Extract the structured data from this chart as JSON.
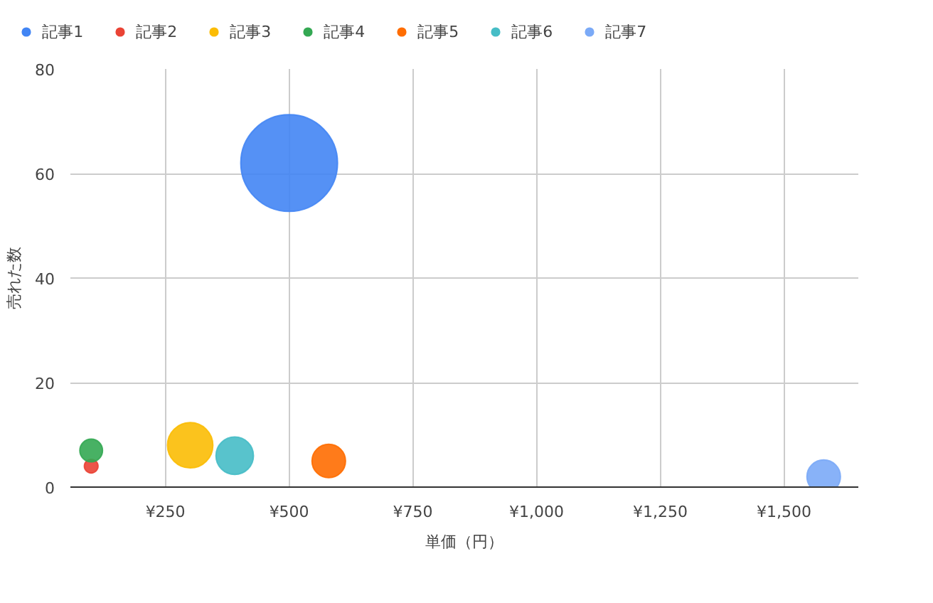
{
  "chart_data": {
    "type": "bubble",
    "xlabel": "単価（円）",
    "ylabel": "売れた数",
    "xlim": [
      58,
      1650
    ],
    "ylim": [
      0,
      80
    ],
    "xticks": [
      {
        "value": 250,
        "label": "¥250"
      },
      {
        "value": 500,
        "label": "¥500"
      },
      {
        "value": 750,
        "label": "¥750"
      },
      {
        "value": 1000,
        "label": "¥1,000"
      },
      {
        "value": 1250,
        "label": "¥1,250"
      },
      {
        "value": 1500,
        "label": "¥1,500"
      }
    ],
    "yticks": [
      0,
      20,
      40,
      60,
      80
    ],
    "grid": true,
    "legend": "top",
    "series": [
      {
        "name": "記事1",
        "color": "#4285f4",
        "x": [
          500
        ],
        "values": [
          62
        ],
        "sizes": [
          1
        ]
      },
      {
        "name": "記事2",
        "color": "#ea4335",
        "x": [
          100
        ],
        "values": [
          4
        ],
        "sizes": [
          0.02
        ]
      },
      {
        "name": "記事3",
        "color": "#fbbc04",
        "x": [
          300
        ],
        "values": [
          8
        ],
        "sizes": [
          0.22
        ]
      },
      {
        "name": "記事4",
        "color": "#34a853",
        "x": [
          100
        ],
        "values": [
          7
        ],
        "sizes": [
          0.055
        ]
      },
      {
        "name": "記事5",
        "color": "#ff6d01",
        "x": [
          580
        ],
        "values": [
          5
        ],
        "sizes": [
          0.12
        ]
      },
      {
        "name": "記事6",
        "color": "#46bdc6",
        "x": [
          390
        ],
        "values": [
          6
        ],
        "sizes": [
          0.15
        ]
      },
      {
        "name": "記事7",
        "color": "#7baaf7",
        "x": [
          1580
        ],
        "values": [
          2
        ],
        "sizes": [
          0.12
        ]
      }
    ]
  }
}
